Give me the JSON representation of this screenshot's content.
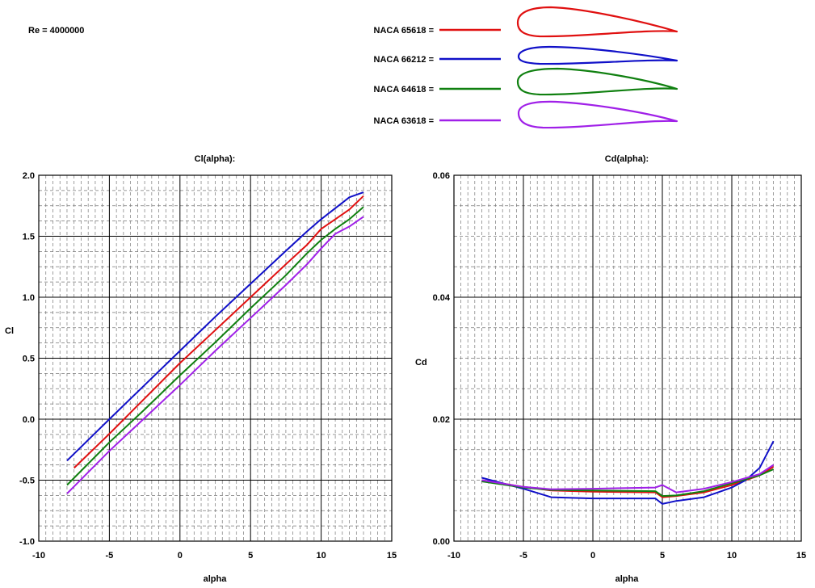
{
  "reynolds_label": "Re = 4000000",
  "legend": [
    {
      "label": "NACA 65618 =",
      "color": "#e01010",
      "shape": "thick-blunt"
    },
    {
      "label": "NACA 66212 =",
      "color": "#1010c8",
      "shape": "thin"
    },
    {
      "label": "NACA 64618 =",
      "color": "#108010",
      "shape": "thick-forward"
    },
    {
      "label": "NACA 63618 =",
      "color": "#a020e8",
      "shape": "thick-round"
    }
  ],
  "chart_data": [
    {
      "type": "line",
      "title": "Cl(alpha):",
      "xlabel": "alpha",
      "ylabel": "Cl",
      "xlim": [
        -10,
        15
      ],
      "ylim": [
        -1.0,
        2.0
      ],
      "xticks": [
        "-10",
        "-5",
        "0",
        "5",
        "10",
        "15"
      ],
      "yticks": [
        "-1.0",
        "-0.5",
        "0.0",
        "0.5",
        "1.0",
        "1.5",
        "2.0"
      ],
      "grid": true,
      "series": [
        {
          "name": "NACA 65618",
          "color": "#e01010",
          "x": [
            -7.5,
            -5,
            -2.5,
            0,
            2.5,
            5,
            7.5,
            9,
            10,
            11,
            12,
            13
          ],
          "y": [
            -0.4,
            -0.12,
            0.17,
            0.46,
            0.73,
            1.0,
            1.27,
            1.43,
            1.56,
            1.64,
            1.72,
            1.83
          ]
        },
        {
          "name": "NACA 66212",
          "color": "#1010c8",
          "x": [
            -8,
            -5,
            -2.5,
            0,
            2.5,
            5,
            7.5,
            9,
            10,
            11,
            12,
            13
          ],
          "y": [
            -0.34,
            0.0,
            0.28,
            0.56,
            0.84,
            1.11,
            1.38,
            1.54,
            1.64,
            1.73,
            1.82,
            1.86
          ]
        },
        {
          "name": "NACA 64618",
          "color": "#108010",
          "x": [
            -8,
            -5,
            -2.5,
            0,
            2.5,
            5,
            7.5,
            9,
            10,
            11,
            12,
            13
          ],
          "y": [
            -0.54,
            -0.19,
            0.08,
            0.36,
            0.63,
            0.91,
            1.18,
            1.36,
            1.47,
            1.56,
            1.64,
            1.74
          ]
        },
        {
          "name": "NACA 63618",
          "color": "#a020e8",
          "x": [
            -8,
            -5,
            -2.5,
            0,
            2.5,
            5,
            7.5,
            9,
            10,
            11,
            12,
            13
          ],
          "y": [
            -0.61,
            -0.26,
            0.01,
            0.28,
            0.56,
            0.83,
            1.1,
            1.27,
            1.4,
            1.52,
            1.58,
            1.66
          ]
        }
      ]
    },
    {
      "type": "line",
      "title": "Cd(alpha):",
      "xlabel": "alpha",
      "ylabel": "Cd",
      "xlim": [
        -10,
        15
      ],
      "ylim": [
        0.0,
        0.06
      ],
      "xticks": [
        "-10",
        "-5",
        "0",
        "5",
        "10",
        "15"
      ],
      "yticks": [
        "0.00",
        "0.02",
        "0.04",
        "0.06"
      ],
      "grid": true,
      "series": [
        {
          "name": "NACA 65618",
          "color": "#e01010",
          "x": [
            -8,
            -5,
            -3,
            0,
            4.5,
            5,
            6,
            8,
            10,
            12,
            13
          ],
          "y": [
            0.01,
            0.0089,
            0.0083,
            0.0081,
            0.008,
            0.0072,
            0.0074,
            0.008,
            0.0092,
            0.0108,
            0.0122
          ]
        },
        {
          "name": "NACA 66212",
          "color": "#1010c8",
          "x": [
            -8,
            -5,
            -3,
            0,
            4.5,
            5,
            6,
            8,
            10,
            11,
            12,
            13
          ],
          "y": [
            0.0104,
            0.0086,
            0.0072,
            0.007,
            0.007,
            0.0061,
            0.0066,
            0.0072,
            0.0088,
            0.01,
            0.012,
            0.0164
          ]
        },
        {
          "name": "NACA 64618",
          "color": "#108010",
          "x": [
            -8,
            -5,
            -3,
            0,
            4.5,
            5,
            6,
            8,
            10,
            12,
            13
          ],
          "y": [
            0.0098,
            0.0088,
            0.0084,
            0.0083,
            0.0082,
            0.0074,
            0.0075,
            0.0082,
            0.0095,
            0.0108,
            0.0118
          ]
        },
        {
          "name": "NACA 63618",
          "color": "#a020e8",
          "x": [
            -8,
            -5,
            -3,
            0,
            4.5,
            5,
            6,
            8,
            10,
            12,
            13
          ],
          "y": [
            0.01,
            0.0089,
            0.0085,
            0.0086,
            0.0088,
            0.0092,
            0.008,
            0.0086,
            0.0097,
            0.011,
            0.0125
          ]
        }
      ]
    }
  ]
}
